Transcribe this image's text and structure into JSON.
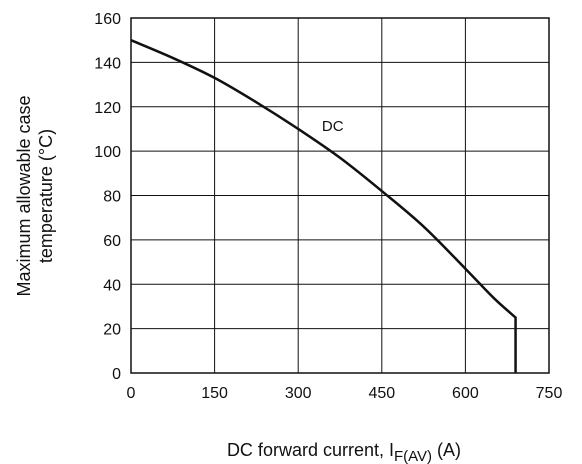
{
  "chart_data": {
    "type": "line",
    "title": "",
    "xlabel": {
      "main": "DC forward current, I",
      "subscript": "F(AV)",
      "unit": " (A)"
    },
    "ylabel": {
      "line1": "Maximum allowable case",
      "line2": "temperature (°C)"
    },
    "xlim": [
      0,
      750
    ],
    "ylim": [
      0,
      160
    ],
    "xticks": [
      0,
      150,
      300,
      450,
      600,
      750
    ],
    "yticks": [
      0,
      20,
      40,
      60,
      80,
      100,
      120,
      140,
      160
    ],
    "grid": true,
    "series": [
      {
        "name": "DC",
        "x": [
          0,
          75,
          150,
          225,
          300,
          375,
          450,
          525,
          600,
          650,
          690,
          690
        ],
        "y": [
          150,
          142,
          133,
          122,
          110,
          97,
          82,
          66,
          47,
          34,
          25,
          0
        ]
      }
    ],
    "annotations": [
      {
        "text": "DC",
        "x": 362,
        "y": 109
      }
    ],
    "colors": {
      "line": "#111111",
      "grid": "#111111"
    }
  }
}
